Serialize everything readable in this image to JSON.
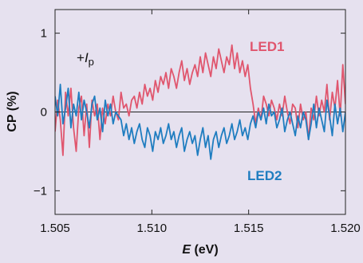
{
  "chart_data": {
    "type": "line",
    "xlabel_italic": "E",
    "xlabel_unit": " (eV)",
    "ylabel": "CP (%)",
    "xlim": [
      1.505,
      1.52
    ],
    "ylim": [
      -1.3,
      1.3
    ],
    "x_ticks": [
      1.505,
      1.51,
      1.515,
      1.52
    ],
    "x_tick_labels": [
      "1.505",
      "1.510",
      "1.515",
      "1.520"
    ],
    "y_ticks": [
      -1,
      0,
      1
    ],
    "y_tick_labels": [
      "−1",
      "0",
      "1"
    ],
    "zero_line": true,
    "annotation": {
      "prefix": "+",
      "italic": "I",
      "sub": "p"
    },
    "colors": {
      "LED1": "#e0566e",
      "LED2": "#1f7dc0",
      "background": "#e6e1ef"
    },
    "series": [
      {
        "name": "LED1",
        "x_range": [
          1.505,
          1.52
        ],
        "values": [
          -0.25,
          0.15,
          -0.1,
          -0.55,
          0.25,
          -0.05,
          0.3,
          -0.2,
          -0.5,
          0.05,
          0.2,
          -0.3,
          0.1,
          -0.45,
          0.15,
          -0.05,
          0.1,
          -0.35,
          0.05,
          -0.15,
          0.1,
          -0.05,
          0.2,
          0.0,
          -0.1,
          0.25,
          0.05,
          0.1,
          -0.05,
          0.15,
          0.2,
          0.05,
          0.25,
          0.1,
          0.35,
          0.2,
          0.3,
          0.15,
          0.4,
          0.25,
          0.45,
          0.35,
          0.5,
          0.3,
          0.55,
          0.45,
          0.3,
          0.5,
          0.65,
          0.4,
          0.55,
          0.35,
          0.5,
          0.6,
          0.45,
          0.7,
          0.5,
          0.75,
          0.6,
          0.45,
          0.7,
          0.55,
          0.8,
          0.65,
          0.5,
          0.7,
          0.6,
          0.85,
          0.55,
          0.75,
          0.5,
          0.65,
          0.45,
          0.6,
          0.3,
          0.1,
          -0.15,
          0.05,
          -0.1,
          0.2,
          0.1,
          -0.05,
          0.15,
          0.05,
          -0.1,
          0.1,
          -0.05,
          0.2,
          0.0,
          -0.15,
          0.1,
          0.05,
          -0.2,
          0.1,
          -0.1,
          0.0,
          -0.35,
          0.05,
          -0.1,
          0.2,
          -0.05,
          0.15,
          0.0,
          0.35,
          -0.1,
          0.25,
          0.05,
          0.4,
          -0.05,
          0.6,
          0.1
        ],
        "label": "LED1"
      },
      {
        "name": "LED2",
        "x_range": [
          1.505,
          1.52
        ],
        "values": [
          0.2,
          -0.05,
          0.35,
          -0.15,
          0.05,
          0.3,
          -0.2,
          0.1,
          -0.05,
          0.25,
          -0.1,
          0.15,
          0.0,
          -0.2,
          0.1,
          0.2,
          -0.1,
          0.05,
          -0.25,
          0.15,
          -0.05,
          0.1,
          -0.15,
          0.0,
          -0.05,
          -0.1,
          -0.3,
          -0.15,
          -0.35,
          -0.2,
          -0.4,
          -0.25,
          -0.15,
          -0.35,
          -0.45,
          -0.2,
          -0.3,
          -0.5,
          -0.25,
          -0.35,
          -0.2,
          -0.4,
          -0.3,
          -0.15,
          -0.35,
          -0.25,
          -0.45,
          -0.3,
          -0.2,
          -0.5,
          -0.35,
          -0.25,
          -0.4,
          -0.3,
          -0.55,
          -0.35,
          -0.2,
          -0.45,
          -0.3,
          -0.6,
          -0.35,
          -0.25,
          -0.45,
          -0.3,
          -0.2,
          -0.4,
          -0.3,
          -0.15,
          -0.35,
          -0.25,
          -0.1,
          -0.3,
          -0.2,
          -0.35,
          -0.15,
          -0.05,
          -0.2,
          0.0,
          -0.1,
          0.05,
          -0.15,
          0.1,
          -0.05,
          0.0,
          -0.2,
          -0.1,
          0.05,
          -0.25,
          -0.1,
          0.0,
          -0.15,
          -0.3,
          -0.05,
          -0.2,
          0.0,
          -0.1,
          -0.35,
          -0.15,
          0.1,
          -0.2,
          0.05,
          -0.1,
          -0.25,
          0.15,
          -0.05,
          -0.3,
          0.1,
          -0.15,
          0.05,
          -0.25,
          0.0
        ],
        "label": "LED2"
      }
    ]
  }
}
